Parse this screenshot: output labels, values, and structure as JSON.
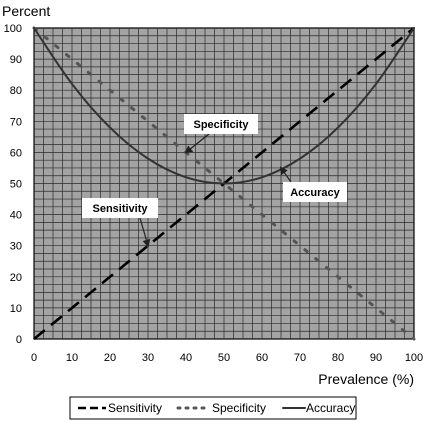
{
  "chart_data": {
    "type": "line",
    "xlabel": "Prevalence (%)",
    "ylabel": "Percent",
    "xlim": [
      0,
      100
    ],
    "ylim": [
      0,
      100
    ],
    "xticks": [
      0,
      10,
      20,
      30,
      40,
      50,
      60,
      70,
      80,
      90,
      100
    ],
    "yticks": [
      0,
      10,
      20,
      30,
      40,
      50,
      60,
      70,
      80,
      90,
      100
    ],
    "grid": true,
    "legend": "bottom",
    "background_color": "#a3a3a3",
    "series": [
      {
        "name": "Sensitivity",
        "style": "long-dash",
        "color": "#000000",
        "x": [
          0,
          100
        ],
        "y": [
          0,
          100
        ]
      },
      {
        "name": "Specificity",
        "style": "dotted",
        "color": "#555555",
        "x": [
          0,
          100
        ],
        "y": [
          100,
          0
        ]
      },
      {
        "name": "Accuracy",
        "style": "solid",
        "color": "#333333",
        "x": [
          0,
          10,
          20,
          30,
          40,
          50,
          60,
          70,
          80,
          90,
          100
        ],
        "y": [
          100,
          82,
          68,
          58,
          52,
          50,
          52,
          58,
          68,
          82,
          100
        ]
      }
    ],
    "annotations": [
      {
        "text": "Specificity",
        "target_x": 40,
        "target_y": 60
      },
      {
        "text": "Accuracy",
        "target_x": 65,
        "target_y": 55
      },
      {
        "text": "Sensitivity",
        "target_x": 30,
        "target_y": 30
      }
    ]
  }
}
